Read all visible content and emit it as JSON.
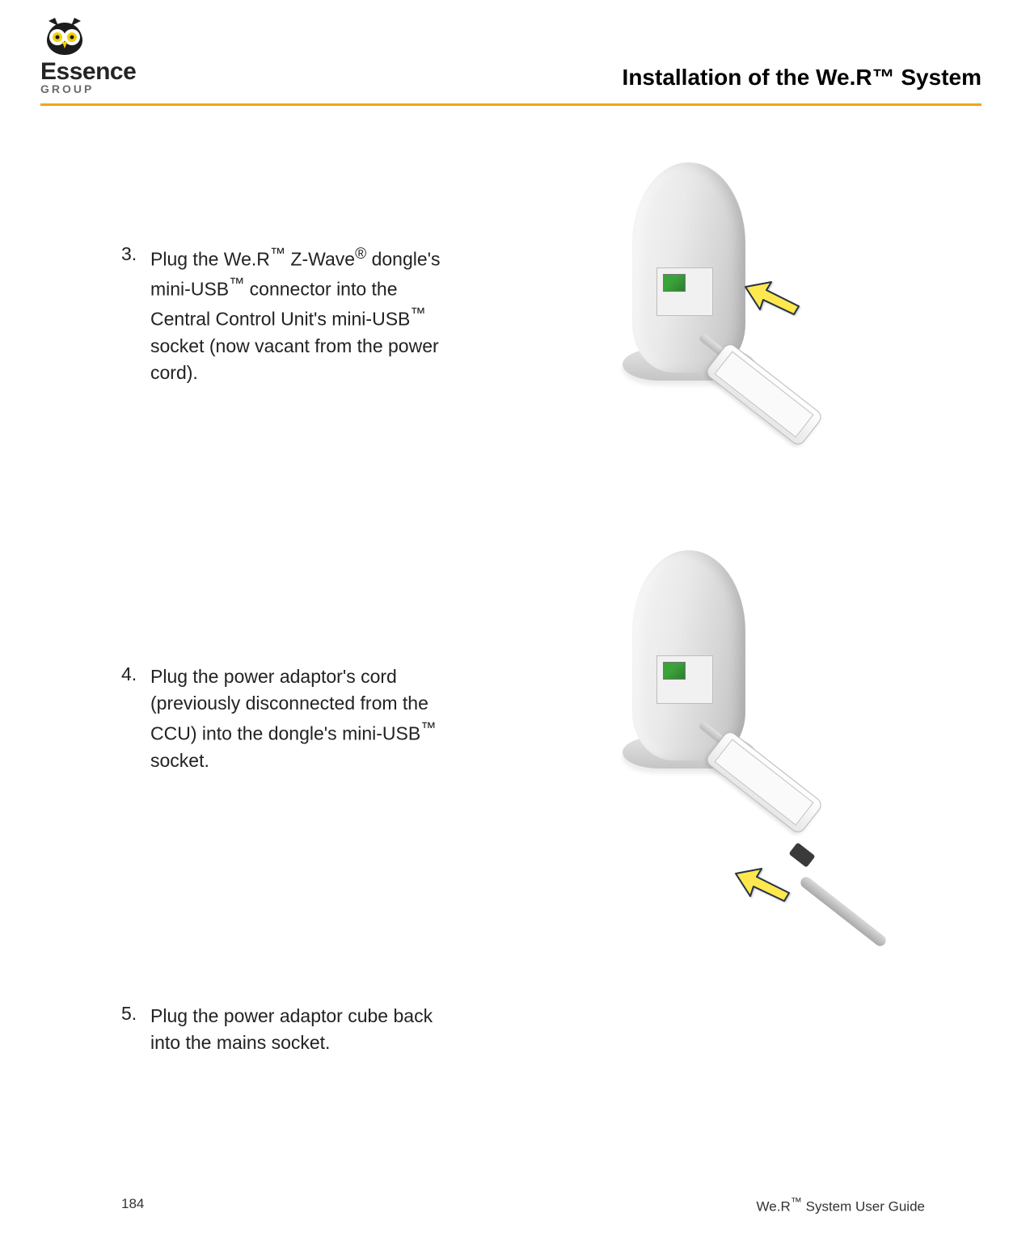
{
  "header": {
    "logo_brand": "Essence",
    "logo_sub": "GROUP",
    "title": "Installation of the We.R™ System",
    "rule_color": "#f0a800"
  },
  "steps": [
    {
      "number": "3.",
      "text_html": "Plug the We.R<sup>™</sup> Z-Wave<sup>®</sup> dongle's mini-USB<sup>™</sup> connector into the Central Control Unit's mini-USB<sup>™</sup> socket (now vacant from the power cord)."
    },
    {
      "number": "4.",
      "text_html": "Plug the power adaptor's cord (previously disconnected from the CCU) into the dongle's mini-USB<sup>™</sup> socket."
    },
    {
      "number": "5.",
      "text_html": "Plug the power adaptor cube back into the mains socket."
    }
  ],
  "illustration": {
    "arrow_fill": "#ffe84d",
    "arrow_stroke": "#243248",
    "device_body_gradient": [
      "#f6f6f6",
      "#bcbcbc"
    ],
    "port_color": "#3aa33a",
    "dongle_fill": "#ffffff"
  },
  "footer": {
    "page_number": "184",
    "guide_label_html": "We.R<sup>™</sup> System User Guide"
  }
}
